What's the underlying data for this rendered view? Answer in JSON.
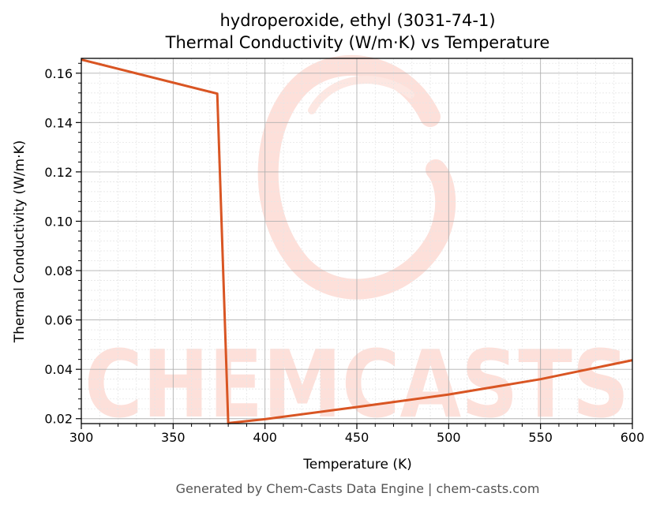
{
  "title_line1": "hydroperoxide, ethyl (3031-74-1)",
  "title_line2": "Thermal Conductivity (W/m·K) vs Temperature",
  "footer": "Generated by Chem-Casts Data Engine | chem-casts.com",
  "watermark": "CHEMCASTS",
  "colors": {
    "line": "#d95523",
    "watermark": "#fdd6cf",
    "grid_major": "#b0b0b0",
    "grid_minor": "#e6e6e6"
  },
  "chart_data": {
    "type": "line",
    "title": "hydroperoxide, ethyl (3031-74-1)\nThermal Conductivity (W/m·K) vs Temperature",
    "xlabel": "Temperature (K)",
    "ylabel": "Thermal Conductivity (W/m·K)",
    "xlim": [
      300,
      600
    ],
    "ylim": [
      0.018,
      0.166
    ],
    "xticks": [
      300,
      350,
      400,
      450,
      500,
      550,
      600
    ],
    "yticks": [
      0.02,
      0.04,
      0.06,
      0.08,
      0.1,
      0.12,
      0.14,
      0.16
    ],
    "ytick_labels": [
      "0.02",
      "0.04",
      "0.06",
      "0.08",
      "0.10",
      "0.12",
      "0.14",
      "0.16"
    ],
    "grid": true,
    "legend": "none",
    "series": [
      {
        "x": [
          300,
          374,
          380,
          400,
          450,
          500,
          550,
          600
        ],
        "y": [
          0.1655,
          0.1517,
          0.0182,
          0.0198,
          0.0247,
          0.0298,
          0.036,
          0.0437
        ]
      }
    ]
  }
}
